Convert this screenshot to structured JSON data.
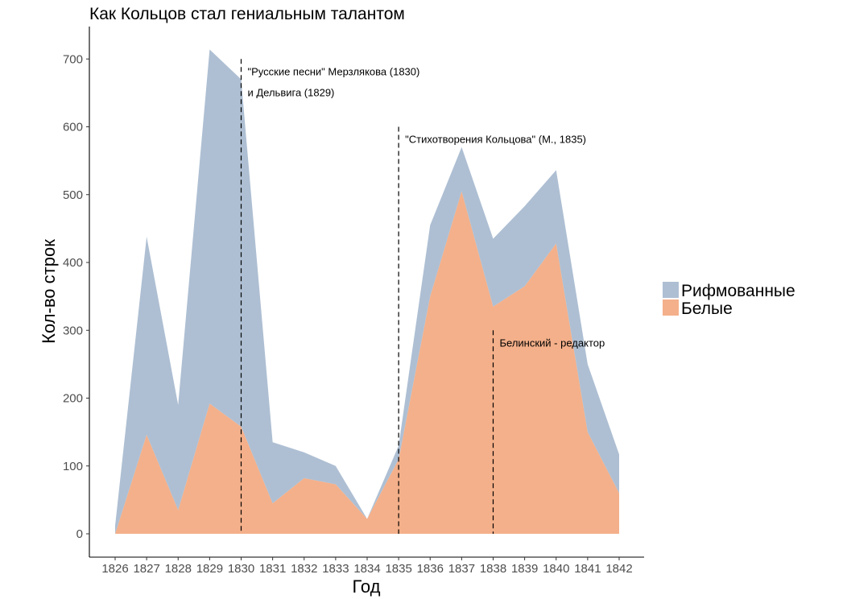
{
  "chart_data": {
    "type": "area",
    "title": "Как Кольцов стал гениальным талантом",
    "xlabel": "Год",
    "ylabel": "Кол-во строк",
    "x": [
      1826,
      1827,
      1828,
      1829,
      1830,
      1831,
      1832,
      1833,
      1834,
      1835,
      1836,
      1837,
      1838,
      1839,
      1840,
      1841,
      1842
    ],
    "xlim": [
      1826,
      1842
    ],
    "ylim": [
      0,
      700
    ],
    "yticks": [
      0,
      100,
      200,
      300,
      400,
      500,
      600,
      700
    ],
    "stacked": true,
    "series": [
      {
        "name": "Белые",
        "color": "#f4b08a",
        "values": [
          0,
          146,
          35,
          192,
          158,
          45,
          82,
          73,
          22,
          110,
          350,
          505,
          335,
          365,
          428,
          150,
          60
        ]
      },
      {
        "name": "Рифмованные",
        "color": "#aebfd3",
        "values": [
          12,
          292,
          155,
          522,
          512,
          90,
          38,
          27,
          0,
          20,
          105,
          65,
          100,
          118,
          108,
          100,
          57
        ]
      }
    ],
    "annotations": [
      {
        "x": 1830,
        "line_top": 700,
        "lines": [
          "\"Русские песни\" Мерзлякова (1830)",
          "и Дельвига (1829)"
        ]
      },
      {
        "x": 1835,
        "line_top": 600,
        "lines": [
          "\"Стихотворения Кольцова\" (М., 1835)"
        ]
      },
      {
        "x": 1838,
        "line_top": 300,
        "lines": [
          "Белинский - редактор"
        ]
      }
    ],
    "legend": {
      "position": "right",
      "items": [
        {
          "label": "Рифмованные",
          "color": "#aebfd3"
        },
        {
          "label": "Белые",
          "color": "#f4b08a"
        }
      ]
    },
    "grid": false
  }
}
